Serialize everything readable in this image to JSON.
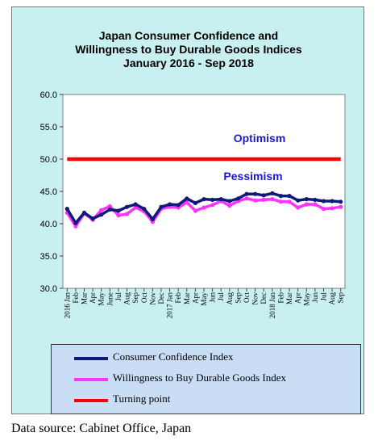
{
  "chart_data": {
    "type": "line",
    "title": [
      "Japan Consumer Confidence and",
      "Willingness to Buy Durable Goods Indices",
      "January 2016 - Sep 2018"
    ],
    "ylim": [
      30,
      60
    ],
    "yticks": [
      "30.0",
      "35.0",
      "40.0",
      "45.0",
      "50.0",
      "55.0",
      "60.0"
    ],
    "x": [
      "2016 Jan",
      "Feb",
      "Mar",
      "Apr",
      "May",
      "June",
      "Jul",
      "Aug",
      "Sep",
      "Oct",
      "Nov",
      "Dec",
      "2017 Jan",
      "Feb",
      "Mar",
      "Apr",
      "May",
      "Jun",
      "Jul",
      "Aug",
      "Sep",
      "Oct",
      "Nov",
      "Dec",
      "2018 Jan",
      "Feb",
      "Mar",
      "Apr",
      "May",
      "Jun",
      "Jul",
      "Aug",
      "Sep"
    ],
    "series": [
      {
        "name": "Consumer Confidence Index",
        "color": "#0d1a7a",
        "values": [
          42.3,
          40.1,
          41.7,
          40.8,
          41.4,
          42.2,
          42.0,
          42.6,
          43.0,
          42.3,
          40.7,
          42.6,
          43.0,
          42.9,
          43.9,
          43.2,
          43.8,
          43.7,
          43.8,
          43.5,
          43.9,
          44.6,
          44.6,
          44.4,
          44.7,
          44.3,
          44.3,
          43.6,
          43.8,
          43.7,
          43.5,
          43.5,
          43.4
        ]
      },
      {
        "name": "Willingness to Buy Durable Goods Index",
        "color": "#ff33ff",
        "values": [
          41.7,
          39.6,
          41.6,
          40.6,
          42.1,
          42.7,
          41.3,
          41.5,
          42.5,
          41.9,
          40.3,
          42.3,
          42.6,
          42.5,
          43.3,
          42.0,
          42.5,
          42.9,
          43.5,
          42.8,
          43.5,
          43.9,
          43.6,
          43.7,
          43.8,
          43.4,
          43.4,
          42.5,
          43.0,
          43.0,
          42.3,
          42.4,
          42.6
        ]
      },
      {
        "name": "Turning point",
        "color": "#ff0000",
        "values": [
          50,
          50,
          50,
          50,
          50,
          50,
          50,
          50,
          50,
          50,
          50,
          50,
          50,
          50,
          50,
          50,
          50,
          50,
          50,
          50,
          50,
          50,
          50,
          50,
          50,
          50,
          50,
          50,
          50,
          50,
          50,
          50,
          50
        ]
      }
    ],
    "annotations": {
      "above": "Optimism",
      "below": "Pessimism"
    },
    "legend_position": "bottom",
    "grid": false
  },
  "source": "Data source: Cabinet Office, Japan"
}
